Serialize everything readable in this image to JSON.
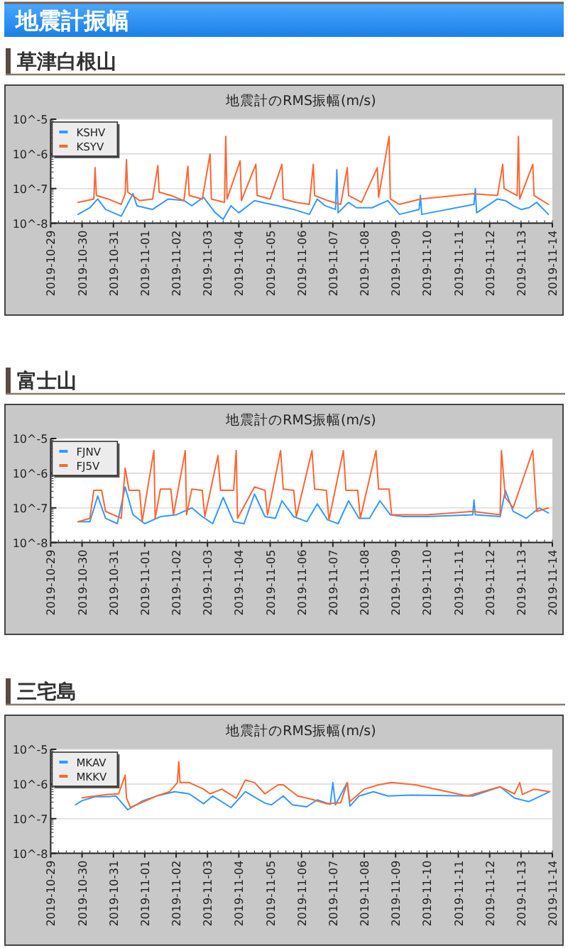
{
  "chart_data": [
    {
      "type": "line",
      "title": "地震計のRMS振幅(m/s)",
      "subtitle": "草津白根山",
      "annotations": [
        "地震計振幅"
      ],
      "log": "y",
      "ylim": [
        1e-08,
        1e-05
      ],
      "yticks": [
        {
          "value": 1e-08,
          "label": "10^-8"
        },
        {
          "value": 1e-07,
          "label": "10^-7"
        },
        {
          "value": 1e-06,
          "label": "10^-6"
        },
        {
          "value": 1e-05,
          "label": "10^-5"
        }
      ],
      "xlim": [
        "2019-10-29",
        "2019-11-14"
      ],
      "xticks": [
        "2019-10-29",
        "2019-10-30",
        "2019-10-31",
        "2019-11-01",
        "2019-11-02",
        "2019-11-03",
        "2019-11-04",
        "2019-11-05",
        "2019-11-06",
        "2019-11-07",
        "2019-11-08",
        "2019-11-09",
        "2019-11-10",
        "2019-11-11",
        "2019-11-12",
        "2019-11-13",
        "2019-11-14"
      ],
      "grid": "y",
      "legend": "top left",
      "series": [
        {
          "name": "KSHV",
          "color": "#3399ff",
          "x": [
            "2019-10-29T21:00",
            "2019-10-30T06:00",
            "2019-10-30T12:00",
            "2019-10-30T18:00",
            "2019-10-31T06:00",
            "2019-10-31T15:00",
            "2019-10-31T18:00",
            "2019-11-01T06:00",
            "2019-11-01T18:00",
            "2019-11-02T06:00",
            "2019-11-02T12:00",
            "2019-11-02T21:00",
            "2019-11-03T06:00",
            "2019-11-03T12:00",
            "2019-11-03T18:00",
            "2019-11-04T00:00",
            "2019-11-04T12:00",
            "2019-11-04T18:00",
            "2019-11-05T06:00",
            "2019-11-05T18:00",
            "2019-11-06T06:00",
            "2019-11-06T12:00",
            "2019-11-06T18:00",
            "2019-11-07T02:00",
            "2019-11-07T03:00",
            "2019-11-07T04:00",
            "2019-11-07T12:00",
            "2019-11-07T18:00",
            "2019-11-08T06:00",
            "2019-11-08T18:00",
            "2019-11-09T03:00",
            "2019-11-09T18:00",
            "2019-11-09T19:00",
            "2019-11-09T20:00",
            "2019-11-11T12:00",
            "2019-11-11T13:00",
            "2019-11-11T14:00",
            "2019-11-12T06:00",
            "2019-11-12T12:00",
            "2019-11-12T18:00",
            "2019-11-13T00:00",
            "2019-11-13T06:00",
            "2019-11-13T12:00",
            "2019-11-13T21:00"
          ],
          "values": [
            1.8e-08,
            2.8e-08,
            5e-08,
            2.5e-08,
            1.6e-08,
            7.1e-08,
            3.2e-08,
            2.5e-08,
            5e-08,
            4.5e-08,
            3.2e-08,
            5.6e-08,
            2e-08,
            1.3e-08,
            3.2e-08,
            2e-08,
            4.5e-08,
            4e-08,
            3.2e-08,
            2.5e-08,
            1.8e-08,
            5e-08,
            3.2e-08,
            2.5e-08,
            3.5e-07,
            2e-08,
            4e-08,
            2.8e-08,
            2.8e-08,
            4.5e-08,
            1.8e-08,
            2.5e-08,
            6.3e-08,
            1.8e-08,
            3.5e-08,
            1e-07,
            2e-08,
            5e-08,
            4.5e-08,
            3.2e-08,
            2.5e-08,
            2.8e-08,
            4e-08,
            1.8e-08
          ]
        },
        {
          "name": "KSYV",
          "color": "#ff6633",
          "x": [
            "2019-10-29T21:00",
            "2019-10-30T09:00",
            "2019-10-30T10:00",
            "2019-10-30T11:00",
            "2019-10-30T20:00",
            "2019-10-31T06:00",
            "2019-10-31T09:00",
            "2019-10-31T10:00",
            "2019-10-31T11:00",
            "2019-10-31T20:00",
            "2019-11-01T06:00",
            "2019-11-01T10:00",
            "2019-11-01T11:00",
            "2019-11-01T20:00",
            "2019-11-02T06:00",
            "2019-11-02T09:00",
            "2019-11-02T10:00",
            "2019-11-02T20:00",
            "2019-11-03T02:00",
            "2019-11-03T03:00",
            "2019-11-03T13:00",
            "2019-11-03T14:00",
            "2019-11-03T15:00",
            "2019-11-04T01:00",
            "2019-11-04T02:00",
            "2019-11-04T13:00",
            "2019-11-04T14:00",
            "2019-11-05T00:00",
            "2019-11-05T09:00",
            "2019-11-05T10:00",
            "2019-11-05T20:00",
            "2019-11-06T06:00",
            "2019-11-06T09:00",
            "2019-11-06T10:00",
            "2019-11-06T20:00",
            "2019-11-07T06:00",
            "2019-11-07T11:00",
            "2019-11-07T12:00",
            "2019-11-07T22:00",
            "2019-11-08T10:00",
            "2019-11-08T11:00",
            "2019-11-08T19:00",
            "2019-11-08T20:00",
            "2019-11-09T03:00",
            "2019-11-09T19:00",
            "2019-11-11T11:00",
            "2019-11-12T06:00",
            "2019-11-12T10:00",
            "2019-11-12T11:00",
            "2019-11-12T21:00",
            "2019-11-12T22:00",
            "2019-11-12T23:00",
            "2019-11-13T09:00",
            "2019-11-13T10:00",
            "2019-11-13T21:00"
          ],
          "values": [
            4e-08,
            5e-08,
            4e-07,
            6.3e-08,
            5e-08,
            3.5e-08,
            7.1e-08,
            6.8e-07,
            7.9e-08,
            4.5e-08,
            5e-08,
            4.6e-07,
            7.9e-08,
            6.3e-08,
            4.5e-08,
            4.4e-07,
            6.3e-08,
            5e-08,
            1e-06,
            5e-08,
            4e-08,
            3.2e-06,
            5e-08,
            6.3e-07,
            4.5e-08,
            5e-07,
            6.3e-08,
            5e-08,
            5e-07,
            5e-08,
            4e-08,
            3.5e-08,
            5e-07,
            6.3e-08,
            4.5e-08,
            3.5e-08,
            4e-07,
            6.3e-08,
            4e-08,
            4e-07,
            5.6e-08,
            3.2e-06,
            5e-08,
            3.5e-08,
            5e-08,
            7.1e-08,
            6.3e-08,
            5e-07,
            1e-07,
            6.3e-08,
            3.2e-06,
            5e-08,
            5e-07,
            6.3e-08,
            3.5e-08
          ]
        }
      ]
    },
    {
      "type": "line",
      "title": "地震計のRMS振幅(m/s)",
      "subtitle": "富士山",
      "log": "y",
      "ylim": [
        1e-08,
        1e-05
      ],
      "yticks": [
        {
          "value": 1e-08,
          "label": "10^-8"
        },
        {
          "value": 1e-07,
          "label": "10^-7"
        },
        {
          "value": 1e-06,
          "label": "10^-6"
        },
        {
          "value": 1e-05,
          "label": "10^-5"
        }
      ],
      "xlim": [
        "2019-10-29",
        "2019-11-14"
      ],
      "xticks": [
        "2019-10-29",
        "2019-10-30",
        "2019-10-31",
        "2019-11-01",
        "2019-11-02",
        "2019-11-03",
        "2019-11-04",
        "2019-11-05",
        "2019-11-06",
        "2019-11-07",
        "2019-11-08",
        "2019-11-09",
        "2019-11-10",
        "2019-11-11",
        "2019-11-12",
        "2019-11-13",
        "2019-11-14"
      ],
      "grid": "y",
      "legend": "top left",
      "series": [
        {
          "name": "FJNV",
          "color": "#3399ff",
          "x": [
            "2019-10-29T21:00",
            "2019-10-30T06:00",
            "2019-10-30T12:00",
            "2019-10-30T18:00",
            "2019-10-31T03:00",
            "2019-10-31T09:00",
            "2019-10-31T15:00",
            "2019-11-01T00:00",
            "2019-11-01T12:00",
            "2019-11-02T00:00",
            "2019-11-02T12:00",
            "2019-11-02T20:00",
            "2019-11-03T04:00",
            "2019-11-03T12:00",
            "2019-11-03T20:00",
            "2019-11-04T04:00",
            "2019-11-04T12:00",
            "2019-11-04T20:00",
            "2019-11-05T04:00",
            "2019-11-05T09:00",
            "2019-11-05T18:00",
            "2019-11-06T04:00",
            "2019-11-06T12:00",
            "2019-11-06T20:00",
            "2019-11-07T04:00",
            "2019-11-07T12:00",
            "2019-11-07T20:00",
            "2019-11-08T04:00",
            "2019-11-08T12:00",
            "2019-11-08T20:00",
            "2019-11-09T06:00",
            "2019-11-10T00:00",
            "2019-11-11T11:00",
            "2019-11-11T12:00",
            "2019-11-11T13:00",
            "2019-11-12T08:00",
            "2019-11-12T12:00",
            "2019-11-12T18:00",
            "2019-11-13T04:00",
            "2019-11-13T14:00",
            "2019-11-13T21:00"
          ],
          "values": [
            4e-08,
            4e-08,
            2.2e-07,
            5e-08,
            3.5e-08,
            4e-07,
            6.3e-08,
            3.5e-08,
            5.6e-08,
            6.3e-08,
            1e-07,
            5.6e-08,
            3.5e-08,
            2e-07,
            4e-08,
            3.5e-08,
            2.5e-07,
            5.6e-08,
            5e-08,
            1.6e-07,
            5.6e-08,
            4e-08,
            1.3e-07,
            4.5e-08,
            3.5e-08,
            1.6e-07,
            5e-08,
            5e-08,
            1.6e-07,
            6.3e-08,
            5.6e-08,
            5.6e-08,
            6.3e-08,
            1.7e-07,
            6.3e-08,
            5.6e-08,
            3.2e-07,
            7.9e-08,
            5e-08,
            1e-07,
            7.1e-08
          ]
        },
        {
          "name": "FJ5V",
          "color": "#ff6633",
          "x": [
            "2019-10-29T21:00",
            "2019-10-30T06:00",
            "2019-10-30T09:00",
            "2019-10-30T15:00",
            "2019-10-30T18:00",
            "2019-10-31T06:00",
            "2019-10-31T09:00",
            "2019-10-31T12:00",
            "2019-10-31T20:00",
            "2019-10-31T22:00",
            "2019-11-01T07:00",
            "2019-11-01T08:00",
            "2019-11-01T12:00",
            "2019-11-01T20:00",
            "2019-11-01T22:00",
            "2019-11-02T07:00",
            "2019-11-02T08:00",
            "2019-11-02T12:00",
            "2019-11-02T20:00",
            "2019-11-02T22:00",
            "2019-11-03T08:00",
            "2019-11-03T10:00",
            "2019-11-03T20:00",
            "2019-11-03T22:00",
            "2019-11-03T23:00",
            "2019-11-04T12:00",
            "2019-11-04T20:00",
            "2019-11-04T22:00",
            "2019-11-05T08:00",
            "2019-11-05T10:00",
            "2019-11-05T18:00",
            "2019-11-05T20:00",
            "2019-11-06T08:00",
            "2019-11-06T10:00",
            "2019-11-06T19:00",
            "2019-11-06T21:00",
            "2019-11-07T08:00",
            "2019-11-07T10:00",
            "2019-11-07T19:00",
            "2019-11-07T21:00",
            "2019-11-08T09:00",
            "2019-11-08T11:00",
            "2019-11-08T19:00",
            "2019-11-08T21:00",
            "2019-11-09T06:00",
            "2019-11-10T00:00",
            "2019-11-11T11:00",
            "2019-11-12T08:00",
            "2019-11-12T09:00",
            "2019-11-12T12:00",
            "2019-11-12T18:00",
            "2019-11-13T09:00",
            "2019-11-13T12:00",
            "2019-11-13T21:00"
          ],
          "values": [
            4e-08,
            5e-08,
            3.2e-07,
            3.2e-07,
            7.9e-08,
            5e-08,
            1.4e-06,
            3.2e-07,
            3.2e-07,
            4e-08,
            4.5e-06,
            5e-08,
            3.5e-07,
            3.5e-07,
            6.3e-08,
            4.5e-06,
            6.3e-08,
            3.5e-07,
            3.2e-07,
            5.6e-08,
            3.2e-06,
            3.2e-07,
            3.2e-07,
            4.5e-06,
            5e-08,
            4e-07,
            3.2e-07,
            6.3e-08,
            4.5e-06,
            3.5e-07,
            3.2e-07,
            5.6e-08,
            4.5e-06,
            3.5e-07,
            3.2e-07,
            4.5e-08,
            4.5e-06,
            3.2e-07,
            3.2e-07,
            5e-08,
            4.5e-06,
            3.5e-07,
            3.5e-07,
            6.3e-08,
            6.3e-08,
            6.3e-08,
            7.9e-08,
            6.3e-08,
            4.5e-06,
            2e-07,
            1e-07,
            4.5e-06,
            7.9e-08,
            1e-07
          ]
        }
      ]
    },
    {
      "type": "line",
      "title": "地震計のRMS振幅(m/s)",
      "subtitle": "三宅島",
      "log": "y",
      "ylim": [
        1e-08,
        1e-05
      ],
      "yticks": [
        {
          "value": 1e-08,
          "label": "10^-8"
        },
        {
          "value": 1e-07,
          "label": "10^-7"
        },
        {
          "value": 1e-06,
          "label": "10^-6"
        },
        {
          "value": 1e-05,
          "label": "10^-5"
        }
      ],
      "xlim": [
        "2019-10-29",
        "2019-11-14"
      ],
      "xticks": [
        "2019-10-29",
        "2019-10-30",
        "2019-10-31",
        "2019-11-01",
        "2019-11-02",
        "2019-11-03",
        "2019-11-04",
        "2019-11-05",
        "2019-11-06",
        "2019-11-07",
        "2019-11-08",
        "2019-11-09",
        "2019-11-10",
        "2019-11-11",
        "2019-11-12",
        "2019-11-13",
        "2019-11-14"
      ],
      "grid": "y",
      "legend": "top left",
      "series": [
        {
          "name": "MKAV",
          "color": "#3399ff",
          "x": [
            "2019-10-29T19:00",
            "2019-10-30T00:00",
            "2019-10-30T10:00",
            "2019-10-30T20:00",
            "2019-10-31T02:00",
            "2019-10-31T11:00",
            "2019-10-31T22:00",
            "2019-11-01T09:00",
            "2019-11-01T23:00",
            "2019-11-02T10:00",
            "2019-11-02T21:00",
            "2019-11-03T04:00",
            "2019-11-03T18:00",
            "2019-11-04T05:00",
            "2019-11-04T20:00",
            "2019-11-05T01:00",
            "2019-11-05T10:00",
            "2019-11-05T17:00",
            "2019-11-06T04:00",
            "2019-11-06T12:00",
            "2019-11-06T22:00",
            "2019-11-07T00:00",
            "2019-11-07T02:00",
            "2019-11-07T11:00",
            "2019-11-07T13:00",
            "2019-11-07T20:00",
            "2019-11-08T07:00",
            "2019-11-08T18:00",
            "2019-11-09T12:00",
            "2019-11-11T11:00",
            "2019-11-12T08:00",
            "2019-11-12T19:00",
            "2019-11-13T06:00",
            "2019-11-13T22:00"
          ],
          "values": [
            2.5e-07,
            3.3e-07,
            4.3e-07,
            4.3e-07,
            4.5e-07,
            1.8e-07,
            3.2e-07,
            4.5e-07,
            6e-07,
            5.2e-07,
            2.7e-07,
            4.5e-07,
            2.1e-07,
            6e-07,
            2.8e-07,
            2.5e-07,
            4.5e-07,
            2.5e-07,
            2.2e-07,
            3.5e-07,
            2.6e-07,
            1.1e-06,
            2.5e-07,
            1.1e-06,
            2.3e-07,
            4.5e-07,
            6e-07,
            4.5e-07,
            4.8e-07,
            4.5e-07,
            8.3e-07,
            3.9e-07,
            3.1e-07,
            6e-07
          ]
        },
        {
          "name": "MKKV",
          "color": "#ff6633",
          "x": [
            "2019-10-30T00:00",
            "2019-10-30T20:00",
            "2019-10-31T04:00",
            "2019-10-31T09:00",
            "2019-10-31T10:00",
            "2019-10-31T13:00",
            "2019-11-01T09:00",
            "2019-11-01T19:00",
            "2019-11-02T01:00",
            "2019-11-02T02:00",
            "2019-11-02T03:00",
            "2019-11-02T10:00",
            "2019-11-02T21:00",
            "2019-11-03T02:00",
            "2019-11-03T11:00",
            "2019-11-03T22:00",
            "2019-11-04T05:00",
            "2019-11-04T12:00",
            "2019-11-04T20:00",
            "2019-11-05T06:00",
            "2019-11-05T10:00",
            "2019-11-05T21:00",
            "2019-11-06T08:00",
            "2019-11-06T19:00",
            "2019-11-07T06:00",
            "2019-11-07T11:00",
            "2019-11-07T13:00",
            "2019-11-08T00:00",
            "2019-11-08T11:00",
            "2019-11-08T21:00",
            "2019-11-09T15:00",
            "2019-11-11T07:00",
            "2019-11-12T08:00",
            "2019-11-12T19:00",
            "2019-11-12T23:00",
            "2019-11-13T01:00",
            "2019-11-13T10:00",
            "2019-11-13T22:00"
          ],
          "values": [
            4e-07,
            5e-07,
            5.2e-07,
            1.8e-06,
            4e-07,
            2.1e-07,
            4.5e-07,
            6e-07,
            1.1e-06,
            4.4e-06,
            1.1e-06,
            1.1e-06,
            7.1e-07,
            5.2e-07,
            7.1e-07,
            3.9e-07,
            1.3e-06,
            1.1e-06,
            5.2e-07,
            9.5e-07,
            9.5e-07,
            4.5e-07,
            3.6e-07,
            2.7e-07,
            2.9e-07,
            1.1e-06,
            3.1e-07,
            7.1e-07,
            9.5e-07,
            1.1e-06,
            9.5e-07,
            4.5e-07,
            8.3e-07,
            5.2e-07,
            1.1e-06,
            5e-07,
            7.1e-07,
            6e-07
          ]
        }
      ]
    }
  ]
}
